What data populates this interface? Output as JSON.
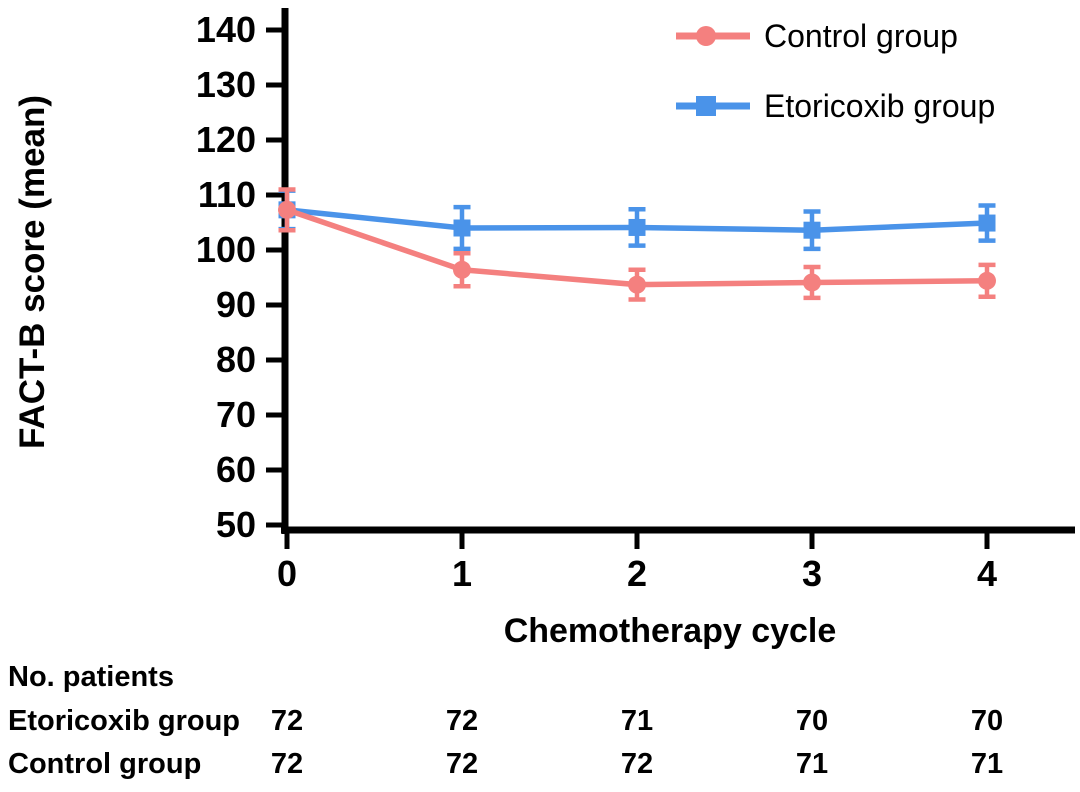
{
  "chart_data": {
    "type": "line",
    "title": "",
    "xlabel": "Chemotherapy cycle",
    "ylabel": "FACT-B score (mean)",
    "x": [
      0,
      1,
      2,
      3,
      4
    ],
    "xtick_labels": [
      "0",
      "1",
      "2",
      "3",
      "4"
    ],
    "yticks": [
      50,
      60,
      70,
      80,
      90,
      100,
      110,
      120,
      130,
      140
    ],
    "ylim": [
      50,
      140
    ],
    "xlim": [
      0,
      4
    ],
    "grid": false,
    "legend_position": "top-right",
    "axis_color": "#000000",
    "series": [
      {
        "name": "Control group",
        "color": "#F4807F",
        "marker": "circle",
        "values": [
          107.3,
          96.4,
          93.7,
          94.1,
          94.4
        ],
        "error": [
          3.7,
          3.0,
          2.7,
          2.8,
          2.9
        ]
      },
      {
        "name": "Etoricoxib group",
        "color": "#4A93E9",
        "marker": "square",
        "values": [
          107.3,
          104.0,
          104.1,
          103.6,
          104.9
        ],
        "error": [
          3.5,
          3.8,
          3.3,
          3.4,
          3.2
        ]
      }
    ]
  },
  "patients_table": {
    "title": "No. patients",
    "rows": [
      {
        "label": "Etoricoxib group",
        "values": [
          "72",
          "72",
          "71",
          "70",
          "70"
        ]
      },
      {
        "label": "Control group",
        "values": [
          "72",
          "72",
          "72",
          "71",
          "71"
        ]
      }
    ]
  }
}
